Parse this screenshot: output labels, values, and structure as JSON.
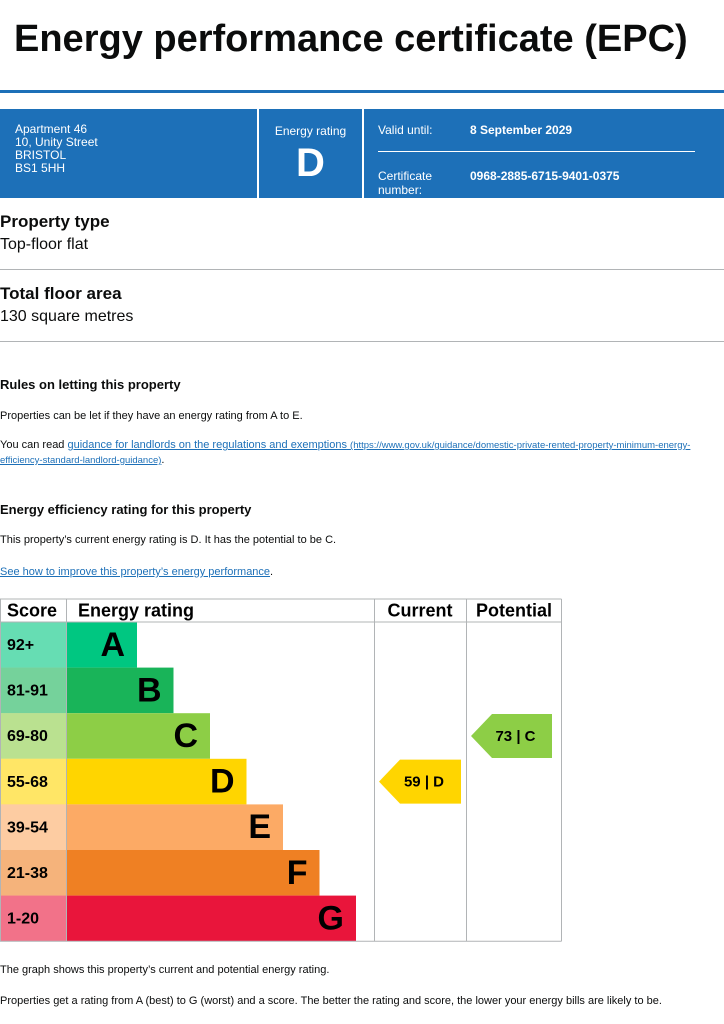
{
  "header": {
    "title": "Energy performance certificate (EPC)"
  },
  "summary": {
    "address": [
      "Apartment 46",
      "10, Unity Street",
      "BRISTOL",
      "BS1 5HH"
    ],
    "energy_rating_label": "Energy rating",
    "energy_rating": "D",
    "valid_until_label": "Valid until:",
    "valid_until": "8 September 2029",
    "certificate_number_label": "Certificate number:",
    "certificate_number": "0968-2885-6715-9401-0375"
  },
  "property_type": {
    "heading": "Property type",
    "value": "Top-floor flat"
  },
  "floor_area": {
    "heading": "Total floor area",
    "value": "130 square metres"
  },
  "letting": {
    "heading": "Rules on letting this property",
    "text": "Properties can be let if they have an energy rating from A to E.",
    "read_prefix": "You can read",
    "link_text": "guidance for landlords on the regulations and exemptions",
    "link_url": "(https://www.gov.uk/guidance/domestic-private-rented-property-minimum-energy-efficiency-standard-landlord-guidance)",
    "read_suffix": "."
  },
  "efficiency": {
    "heading": "Energy efficiency rating for this property",
    "text": "This property’s current energy rating is D. It has the potential to be C.",
    "link": "See how to improve this property’s energy performance",
    "link_suffix": "."
  },
  "rating_table": {
    "headers": [
      "Score",
      "Energy rating",
      "Current",
      "Potential"
    ],
    "rows": [
      {
        "score": "92+",
        "band": "A",
        "color": "#00c781"
      },
      {
        "score": "81-91",
        "band": "B",
        "color": "#19b459"
      },
      {
        "score": "69-80",
        "band": "C",
        "color": "#8dce46"
      },
      {
        "score": "55-68",
        "band": "D",
        "color": "#ffd500"
      },
      {
        "score": "39-54",
        "band": "E",
        "color": "#fcaa65"
      },
      {
        "score": "21-38",
        "band": "F",
        "color": "#ef8023"
      },
      {
        "score": "1-20",
        "band": "G",
        "color": "#e9153b"
      }
    ],
    "current": "59 | D",
    "potential": "73 | C"
  },
  "footer": [
    "The graph shows this property’s current and potential energy rating.",
    "Properties get a rating from A (best) to G (worst) and a score. The better the rating and score, the lower your energy bills are likely to be."
  ]
}
